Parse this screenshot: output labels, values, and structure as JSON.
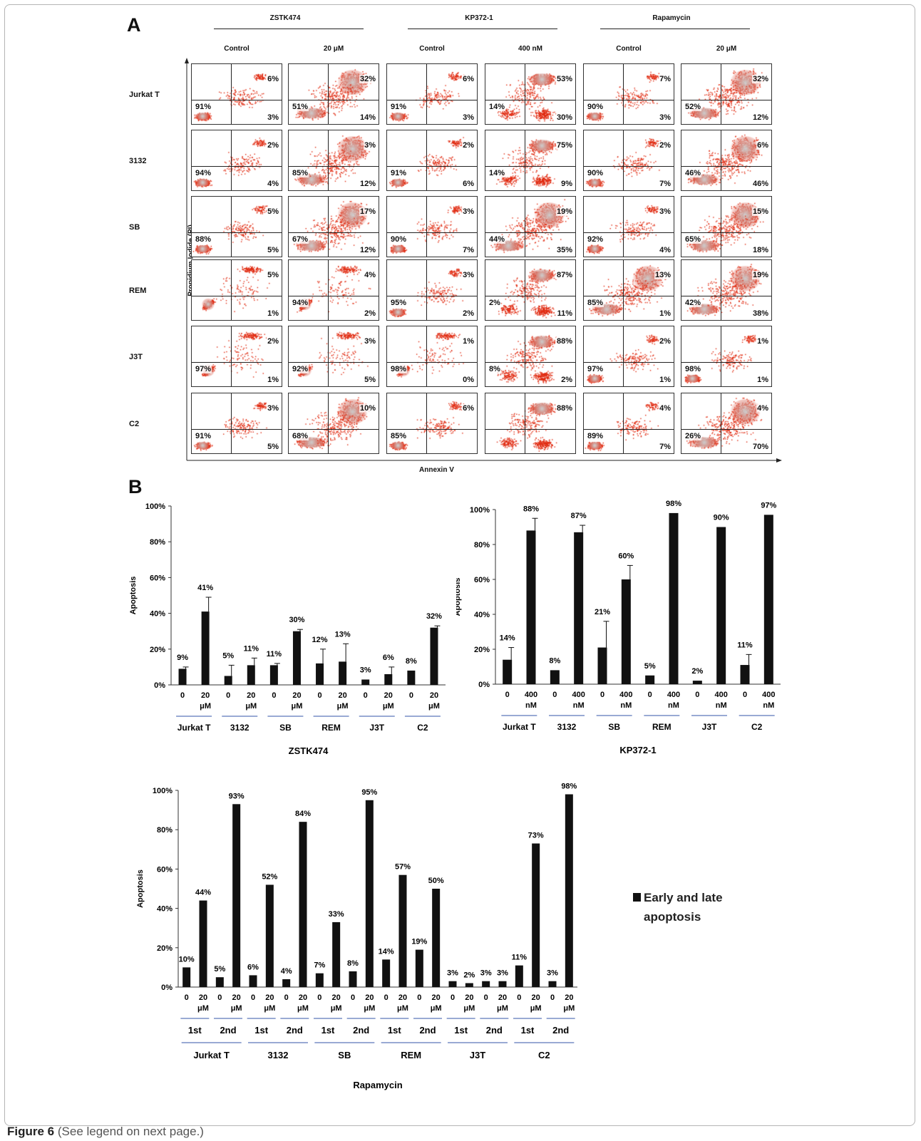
{
  "panel_a_label": "A",
  "panel_b_label": "B",
  "flow": {
    "drugs": [
      {
        "name": "ZSTK474",
        "conditions": [
          "Control",
          "20 μM"
        ]
      },
      {
        "name": "KP372-1",
        "conditions": [
          "Control",
          "400 nM"
        ]
      },
      {
        "name": "Rapamycin",
        "conditions": [
          "Control",
          "20 μM"
        ]
      }
    ],
    "rows": [
      "Jurkat T",
      "3132",
      "SB",
      "REM",
      "J3T",
      "C2"
    ],
    "y_axis_label": "Propidium Iodide (PI)",
    "x_axis_label": "Annexin V",
    "scatter_color": "#e02a10",
    "cells": [
      [
        {
          "ll": "91%",
          "ur": "6%",
          "lr": "3%",
          "p": 1
        },
        {
          "ll": "51%",
          "ur": "32%",
          "lr": "14%",
          "p": 2
        },
        {
          "ll": "91%",
          "ur": "6%",
          "lr": "3%",
          "p": 1
        },
        {
          "ll": "14%",
          "ur": "53%",
          "lr": "30%",
          "p": 3
        },
        {
          "ll": "90%",
          "ur": "7%",
          "lr": "3%",
          "p": 1
        },
        {
          "ll": "52%",
          "ur": "32%",
          "lr": "12%",
          "p": 2
        }
      ],
      [
        {
          "ll": "94%",
          "ur": "2%",
          "lr": "4%",
          "p": 1
        },
        {
          "ll": "85%",
          "ur": "3%",
          "lr": "12%",
          "p": 2
        },
        {
          "ll": "91%",
          "ur": "2%",
          "lr": "6%",
          "p": 1
        },
        {
          "ll": "14%",
          "ur": "75%",
          "lr": "9%",
          "p": 3
        },
        {
          "ll": "90%",
          "ur": "2%",
          "lr": "7%",
          "p": 1
        },
        {
          "ll": "46%",
          "ur": "6%",
          "lr": "46%",
          "p": 2
        }
      ],
      [
        {
          "ll": "88%",
          "ur": "5%",
          "lr": "5%",
          "p": 1
        },
        {
          "ll": "67%",
          "ur": "17%",
          "lr": "12%",
          "p": 2
        },
        {
          "ll": "90%",
          "ur": "3%",
          "lr": "7%",
          "p": 1
        },
        {
          "ll": "44%",
          "ur": "19%",
          "lr": "35%",
          "p": 2
        },
        {
          "ll": "92%",
          "ur": "3%",
          "lr": "4%",
          "p": 1
        },
        {
          "ll": "65%",
          "ur": "15%",
          "lr": "18%",
          "p": 2
        }
      ],
      [
        {
          "ll": "",
          "ur": "5%",
          "lr": "1%",
          "p": 4
        },
        {
          "ll": "94%",
          "ur": "4%",
          "lr": "2%",
          "p": 4
        },
        {
          "ll": "95%",
          "ur": "3%",
          "lr": "2%",
          "p": 1
        },
        {
          "ll": "2%",
          "ur": "87%",
          "lr": "11%",
          "p": 3
        },
        {
          "ll": "85%",
          "ur": "13%",
          "lr": "1%",
          "p": 2
        },
        {
          "ll": "42%",
          "ur": "19%",
          "lr": "38%",
          "p": 2
        }
      ],
      [
        {
          "ll": "97%",
          "ur": "2%",
          "lr": "1%",
          "p": 4
        },
        {
          "ll": "92%",
          "ur": "3%",
          "lr": "5%",
          "p": 4
        },
        {
          "ll": "98%",
          "ur": "1%",
          "lr": "0%",
          "p": 4
        },
        {
          "ll": "8%",
          "ur": "88%",
          "lr": "2%",
          "p": 3
        },
        {
          "ll": "97%",
          "ur": "2%",
          "lr": "1%",
          "p": 1
        },
        {
          "ll": "98%",
          "ur": "1%",
          "lr": "1%",
          "p": 1
        }
      ],
      [
        {
          "ll": "91%",
          "ur": "3%",
          "lr": "5%",
          "p": 1
        },
        {
          "ll": "68%",
          "ur": "10%",
          "lr": "",
          "p": 2
        },
        {
          "ll": "85%",
          "ur": "6%",
          "lr": "",
          "p": 1
        },
        {
          "ll": "",
          "ur": "88%",
          "lr": "",
          "p": 3
        },
        {
          "ll": "89%",
          "ur": "4%",
          "lr": "7%",
          "p": 1
        },
        {
          "ll": "26%",
          "ur": "4%",
          "lr": "70%",
          "p": 2
        }
      ]
    ]
  },
  "chart_data": [
    {
      "type": "bar",
      "title": "ZSTK474",
      "ylabel": "Apoptosis",
      "ylim": [
        0,
        100
      ],
      "yticks": [
        "0%",
        "20%",
        "40%",
        "60%",
        "80%",
        "100%"
      ],
      "cell_lines": [
        "Jurkat T",
        "3132",
        "SB",
        "REM",
        "J3T",
        "C2"
      ],
      "doses": [
        [
          "0",
          ""
        ],
        [
          "20",
          "μM"
        ]
      ],
      "values": [
        9,
        41,
        5,
        11,
        11,
        30,
        12,
        13,
        3,
        6,
        8,
        32
      ],
      "data_labels": [
        "9%",
        "41%",
        "5%",
        "11%",
        "11%",
        "30%",
        "12%",
        "13%",
        "3%",
        "6%",
        "8%",
        "32%"
      ],
      "errors": [
        1,
        8,
        6,
        4,
        1,
        1,
        8,
        10,
        0,
        4,
        0,
        1
      ]
    },
    {
      "type": "bar",
      "title": "KP372-1",
      "ylabel": "Apoptosis",
      "ylim": [
        0,
        100
      ],
      "yticks": [
        "0%",
        "20%",
        "40%",
        "60%",
        "80%",
        "100%"
      ],
      "cell_lines": [
        "Jurkat T",
        "3132",
        "SB",
        "REM",
        "J3T",
        "C2"
      ],
      "doses": [
        [
          "0",
          ""
        ],
        [
          "400",
          "nM"
        ]
      ],
      "values": [
        14,
        88,
        8,
        87,
        21,
        60,
        5,
        98,
        2,
        90,
        11,
        97
      ],
      "data_labels": [
        "14%",
        "88%",
        "8%",
        "87%",
        "21%",
        "60%",
        "5%",
        "98%",
        "2%",
        "90%",
        "11%",
        "97%"
      ],
      "errors": [
        7,
        7,
        0,
        4,
        15,
        8,
        0,
        0,
        0,
        0,
        6,
        0
      ]
    },
    {
      "type": "bar",
      "title": "Rapamycin",
      "ylabel": "Apoptosis",
      "ylim": [
        0,
        100
      ],
      "yticks": [
        "0%",
        "20%",
        "40%",
        "60%",
        "80%",
        "100%"
      ],
      "cell_lines": [
        "Jurkat T",
        "3132",
        "SB",
        "REM",
        "J3T",
        "C2"
      ],
      "rounds": [
        "1st",
        "2nd"
      ],
      "doses": [
        [
          "0",
          ""
        ],
        [
          "20",
          "μM"
        ]
      ],
      "values": [
        10,
        44,
        5,
        93,
        6,
        52,
        4,
        84,
        7,
        33,
        8,
        95,
        14,
        57,
        19,
        50,
        3,
        2,
        3,
        3,
        11,
        73,
        3,
        98
      ],
      "data_labels": [
        "10%",
        "44%",
        "5%",
        "93%",
        "6%",
        "52%",
        "4%",
        "84%",
        "7%",
        "33%",
        "8%",
        "95%",
        "14%",
        "57%",
        "19%",
        "50%",
        "3%",
        "2%",
        "3%",
        "3%",
        "11%",
        "73%",
        "3%",
        "98%"
      ],
      "legend": "Early and late apoptosis"
    }
  ],
  "caption": {
    "label": "Figure 6",
    "text": "(See legend on next page.)"
  }
}
